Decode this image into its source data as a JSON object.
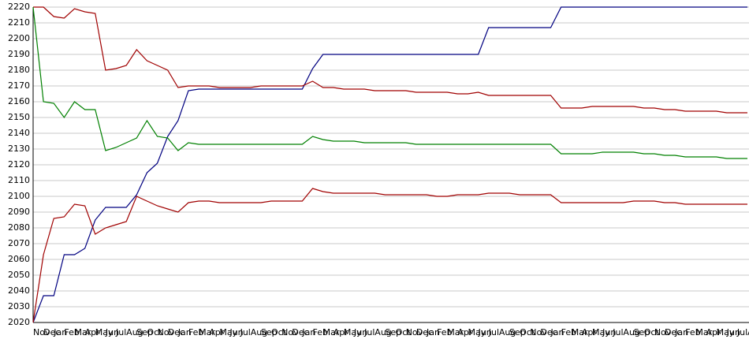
{
  "chart_data": {
    "type": "line",
    "categories": [
      "Nov",
      "Dec",
      "Jan",
      "Feb",
      "Mar",
      "Apr",
      "May",
      "Jun",
      "Jul",
      "Aug",
      "Sep",
      "Oct",
      "Nov",
      "Dec",
      "Jan",
      "Feb",
      "Mar",
      "Apr",
      "May",
      "Jun",
      "Jul",
      "Aug",
      "Sep",
      "Oct",
      "Nov",
      "Dec",
      "Jan",
      "Feb",
      "Mar",
      "Apr",
      "May",
      "Jun",
      "Jul",
      "Aug",
      "Sep",
      "Oct",
      "Nov",
      "Dec",
      "Jan",
      "Feb",
      "Mar",
      "Apr",
      "May",
      "Jun",
      "Jul",
      "Aug",
      "Sep",
      "Oct",
      "Nov",
      "Dec",
      "Jan",
      "Feb",
      "Mar",
      "Apr",
      "May",
      "Jun",
      "Jul",
      "Aug",
      "Sep",
      "Oct",
      "Nov",
      "Dec",
      "Jan",
      "Feb",
      "Mar",
      "Apr",
      "May",
      "Jun",
      "Jul",
      "Aug"
    ],
    "series": [
      {
        "color": "#000080",
        "values": [
          2020,
          2037,
          2037,
          2063,
          2063,
          2067,
          2085,
          2093,
          2093,
          2093,
          2101,
          2115,
          2121,
          2138,
          2148,
          2167,
          2168,
          2168,
          2168,
          2168,
          2168,
          2168,
          2168,
          2168,
          2168,
          2168,
          2168,
          2181,
          2190,
          2190,
          2190,
          2190,
          2190,
          2190,
          2190,
          2190,
          2190,
          2190,
          2190,
          2190,
          2190,
          2190,
          2190,
          2190,
          2207,
          2207,
          2207,
          2207,
          2207,
          2207,
          2207,
          2220,
          2220,
          2220,
          2220,
          2220,
          2220,
          2220,
          2220,
          2220,
          2220,
          2220,
          2220,
          2220,
          2220,
          2220,
          2220,
          2220,
          2220,
          2220
        ]
      },
      {
        "color": "#a00000",
        "values": [
          2220,
          2220,
          2214,
          2213,
          2219,
          2217,
          2216,
          2180,
          2181,
          2183,
          2193,
          2186,
          2183,
          2180,
          2169,
          2170,
          2170,
          2170,
          2169,
          2169,
          2169,
          2169,
          2170,
          2170,
          2170,
          2170,
          2170,
          2173,
          2169,
          2169,
          2168,
          2168,
          2168,
          2167,
          2167,
          2167,
          2167,
          2166,
          2166,
          2166,
          2166,
          2165,
          2165,
          2166,
          2164,
          2164,
          2164,
          2164,
          2164,
          2164,
          2164,
          2156,
          2156,
          2156,
          2157,
          2157,
          2157,
          2157,
          2157,
          2156,
          2156,
          2155,
          2155,
          2154,
          2154,
          2154,
          2154,
          2153,
          2153,
          2153
        ]
      },
      {
        "color": "#008000",
        "values": [
          2220,
          2160,
          2159,
          2150,
          2160,
          2155,
          2155,
          2129,
          2131,
          2134,
          2137,
          2148,
          2138,
          2137,
          2129,
          2134,
          2133,
          2133,
          2133,
          2133,
          2133,
          2133,
          2133,
          2133,
          2133,
          2133,
          2133,
          2138,
          2136,
          2135,
          2135,
          2135,
          2134,
          2134,
          2134,
          2134,
          2134,
          2133,
          2133,
          2133,
          2133,
          2133,
          2133,
          2133,
          2133,
          2133,
          2133,
          2133,
          2133,
          2133,
          2133,
          2127,
          2127,
          2127,
          2127,
          2128,
          2128,
          2128,
          2128,
          2127,
          2127,
          2126,
          2126,
          2125,
          2125,
          2125,
          2125,
          2124,
          2124,
          2124
        ]
      },
      {
        "color": "#a00000",
        "values": [
          2020,
          2063,
          2086,
          2087,
          2095,
          2094,
          2076,
          2080,
          2082,
          2084,
          2100,
          2097,
          2094,
          2092,
          2090,
          2096,
          2097,
          2097,
          2096,
          2096,
          2096,
          2096,
          2096,
          2097,
          2097,
          2097,
          2097,
          2105,
          2103,
          2102,
          2102,
          2102,
          2102,
          2102,
          2101,
          2101,
          2101,
          2101,
          2101,
          2100,
          2100,
          2101,
          2101,
          2101,
          2102,
          2102,
          2102,
          2101,
          2101,
          2101,
          2101,
          2096,
          2096,
          2096,
          2096,
          2096,
          2096,
          2096,
          2097,
          2097,
          2097,
          2096,
          2096,
          2095,
          2095,
          2095,
          2095,
          2095,
          2095,
          2095
        ]
      }
    ],
    "ylim": [
      2020,
      2220
    ],
    "yticks": [
      2020,
      2030,
      2040,
      2050,
      2060,
      2070,
      2080,
      2090,
      2100,
      2110,
      2120,
      2130,
      2140,
      2150,
      2160,
      2170,
      2180,
      2190,
      2200,
      2210,
      2220
    ],
    "grid": true
  }
}
